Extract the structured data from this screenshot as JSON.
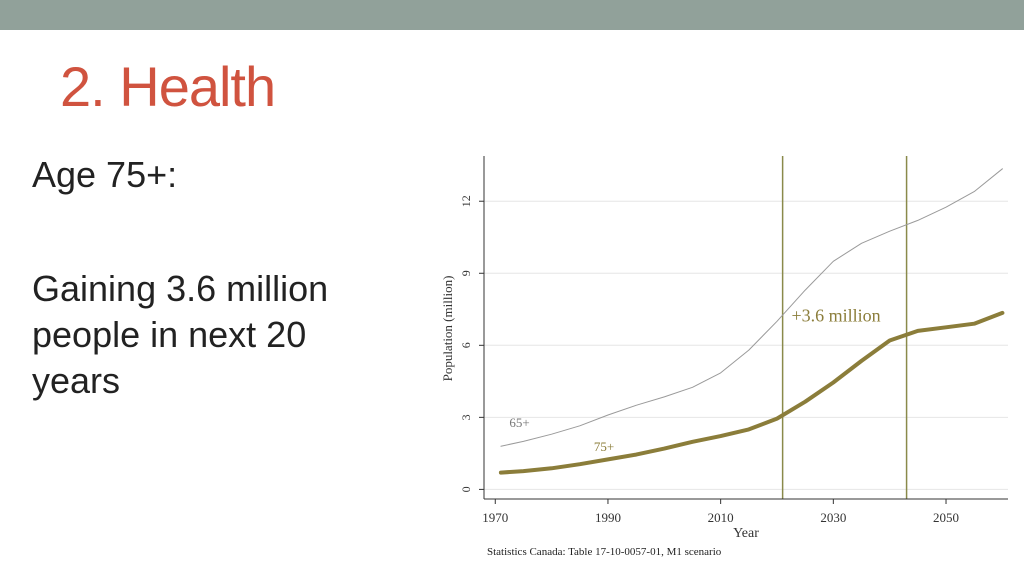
{
  "slide": {
    "title": "2. Health",
    "subhead": "Age 75+:",
    "detail": "Gaining 3.6 million people in next 20 years"
  },
  "colors": {
    "title": "#d0533f",
    "top_bar": "#91a19a",
    "series_75": "#8b7d3a",
    "series_65": "#9a9a9a",
    "vline": "#8a8a4a"
  },
  "chart_data": {
    "type": "line",
    "xlabel": "Year",
    "ylabel": "Population (million)",
    "xlim": [
      1968,
      2061
    ],
    "ylim": [
      -0.4,
      13.8
    ],
    "xticks": [
      1970,
      1990,
      2010,
      2030,
      2050
    ],
    "yticks": [
      0,
      3,
      6,
      9,
      12
    ],
    "grid": true,
    "source": "Statistics Canada: Table 17-10-0057-01, M1 scenario",
    "vlines": [
      2021,
      2043
    ],
    "annotation": {
      "text": "+3.6 million",
      "x": 2021.5,
      "y": 7.0
    },
    "series": [
      {
        "name": "65+",
        "label_pos": {
          "x": 1972.5,
          "y": 2.6
        },
        "x": [
          1971,
          1975,
          1980,
          1985,
          1990,
          1995,
          2000,
          2005,
          2010,
          2015,
          2020,
          2025,
          2030,
          2035,
          2040,
          2045,
          2050,
          2055,
          2060
        ],
        "y": [
          1.8,
          2.0,
          2.3,
          2.65,
          3.1,
          3.5,
          3.85,
          4.25,
          4.85,
          5.8,
          7.0,
          8.3,
          9.5,
          10.25,
          10.75,
          11.2,
          11.75,
          12.4,
          13.35
        ]
      },
      {
        "name": "75+",
        "label_pos": {
          "x": 1987.5,
          "y": 1.6
        },
        "x": [
          1971,
          1975,
          1980,
          1985,
          1990,
          1995,
          2000,
          2005,
          2010,
          2015,
          2020,
          2025,
          2030,
          2035,
          2040,
          2045,
          2050,
          2055,
          2060
        ],
        "y": [
          0.7,
          0.76,
          0.88,
          1.05,
          1.25,
          1.45,
          1.7,
          1.98,
          2.22,
          2.5,
          2.95,
          3.65,
          4.45,
          5.35,
          6.2,
          6.6,
          6.75,
          6.9,
          7.35
        ]
      }
    ]
  }
}
